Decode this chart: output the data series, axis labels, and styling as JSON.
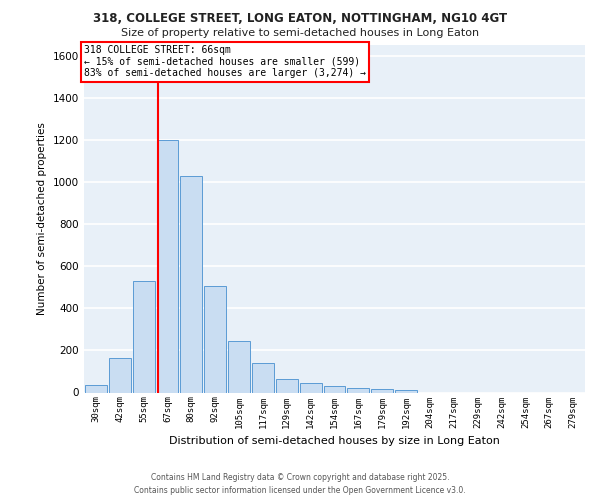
{
  "title": "318, COLLEGE STREET, LONG EATON, NOTTINGHAM, NG10 4GT",
  "subtitle": "Size of property relative to semi-detached houses in Long Eaton",
  "xlabel": "Distribution of semi-detached houses by size in Long Eaton",
  "ylabel": "Number of semi-detached properties",
  "footer1": "Contains HM Land Registry data © Crown copyright and database right 2025.",
  "footer2": "Contains public sector information licensed under the Open Government Licence v3.0.",
  "categories": [
    "30sqm",
    "42sqm",
    "55sqm",
    "67sqm",
    "80sqm",
    "92sqm",
    "105sqm",
    "117sqm",
    "129sqm",
    "142sqm",
    "154sqm",
    "167sqm",
    "179sqm",
    "192sqm",
    "204sqm",
    "217sqm",
    "229sqm",
    "242sqm",
    "254sqm",
    "267sqm",
    "279sqm"
  ],
  "values": [
    35,
    165,
    530,
    1200,
    1030,
    505,
    245,
    140,
    65,
    45,
    30,
    20,
    15,
    10,
    0,
    0,
    0,
    0,
    0,
    0,
    0
  ],
  "bar_color": "#c9ddf2",
  "bar_edge_color": "#5b9bd5",
  "red_line_bar_index": 3,
  "property_label": "318 COLLEGE STREET: 66sqm",
  "annotation_line1": "← 15% of semi-detached houses are smaller (599)",
  "annotation_line2": "83% of semi-detached houses are larger (3,274) →",
  "ylim": [
    0,
    1650
  ],
  "yticks": [
    0,
    200,
    400,
    600,
    800,
    1000,
    1200,
    1400,
    1600
  ],
  "background_color": "#e8f0f8",
  "grid_color": "#ffffff"
}
